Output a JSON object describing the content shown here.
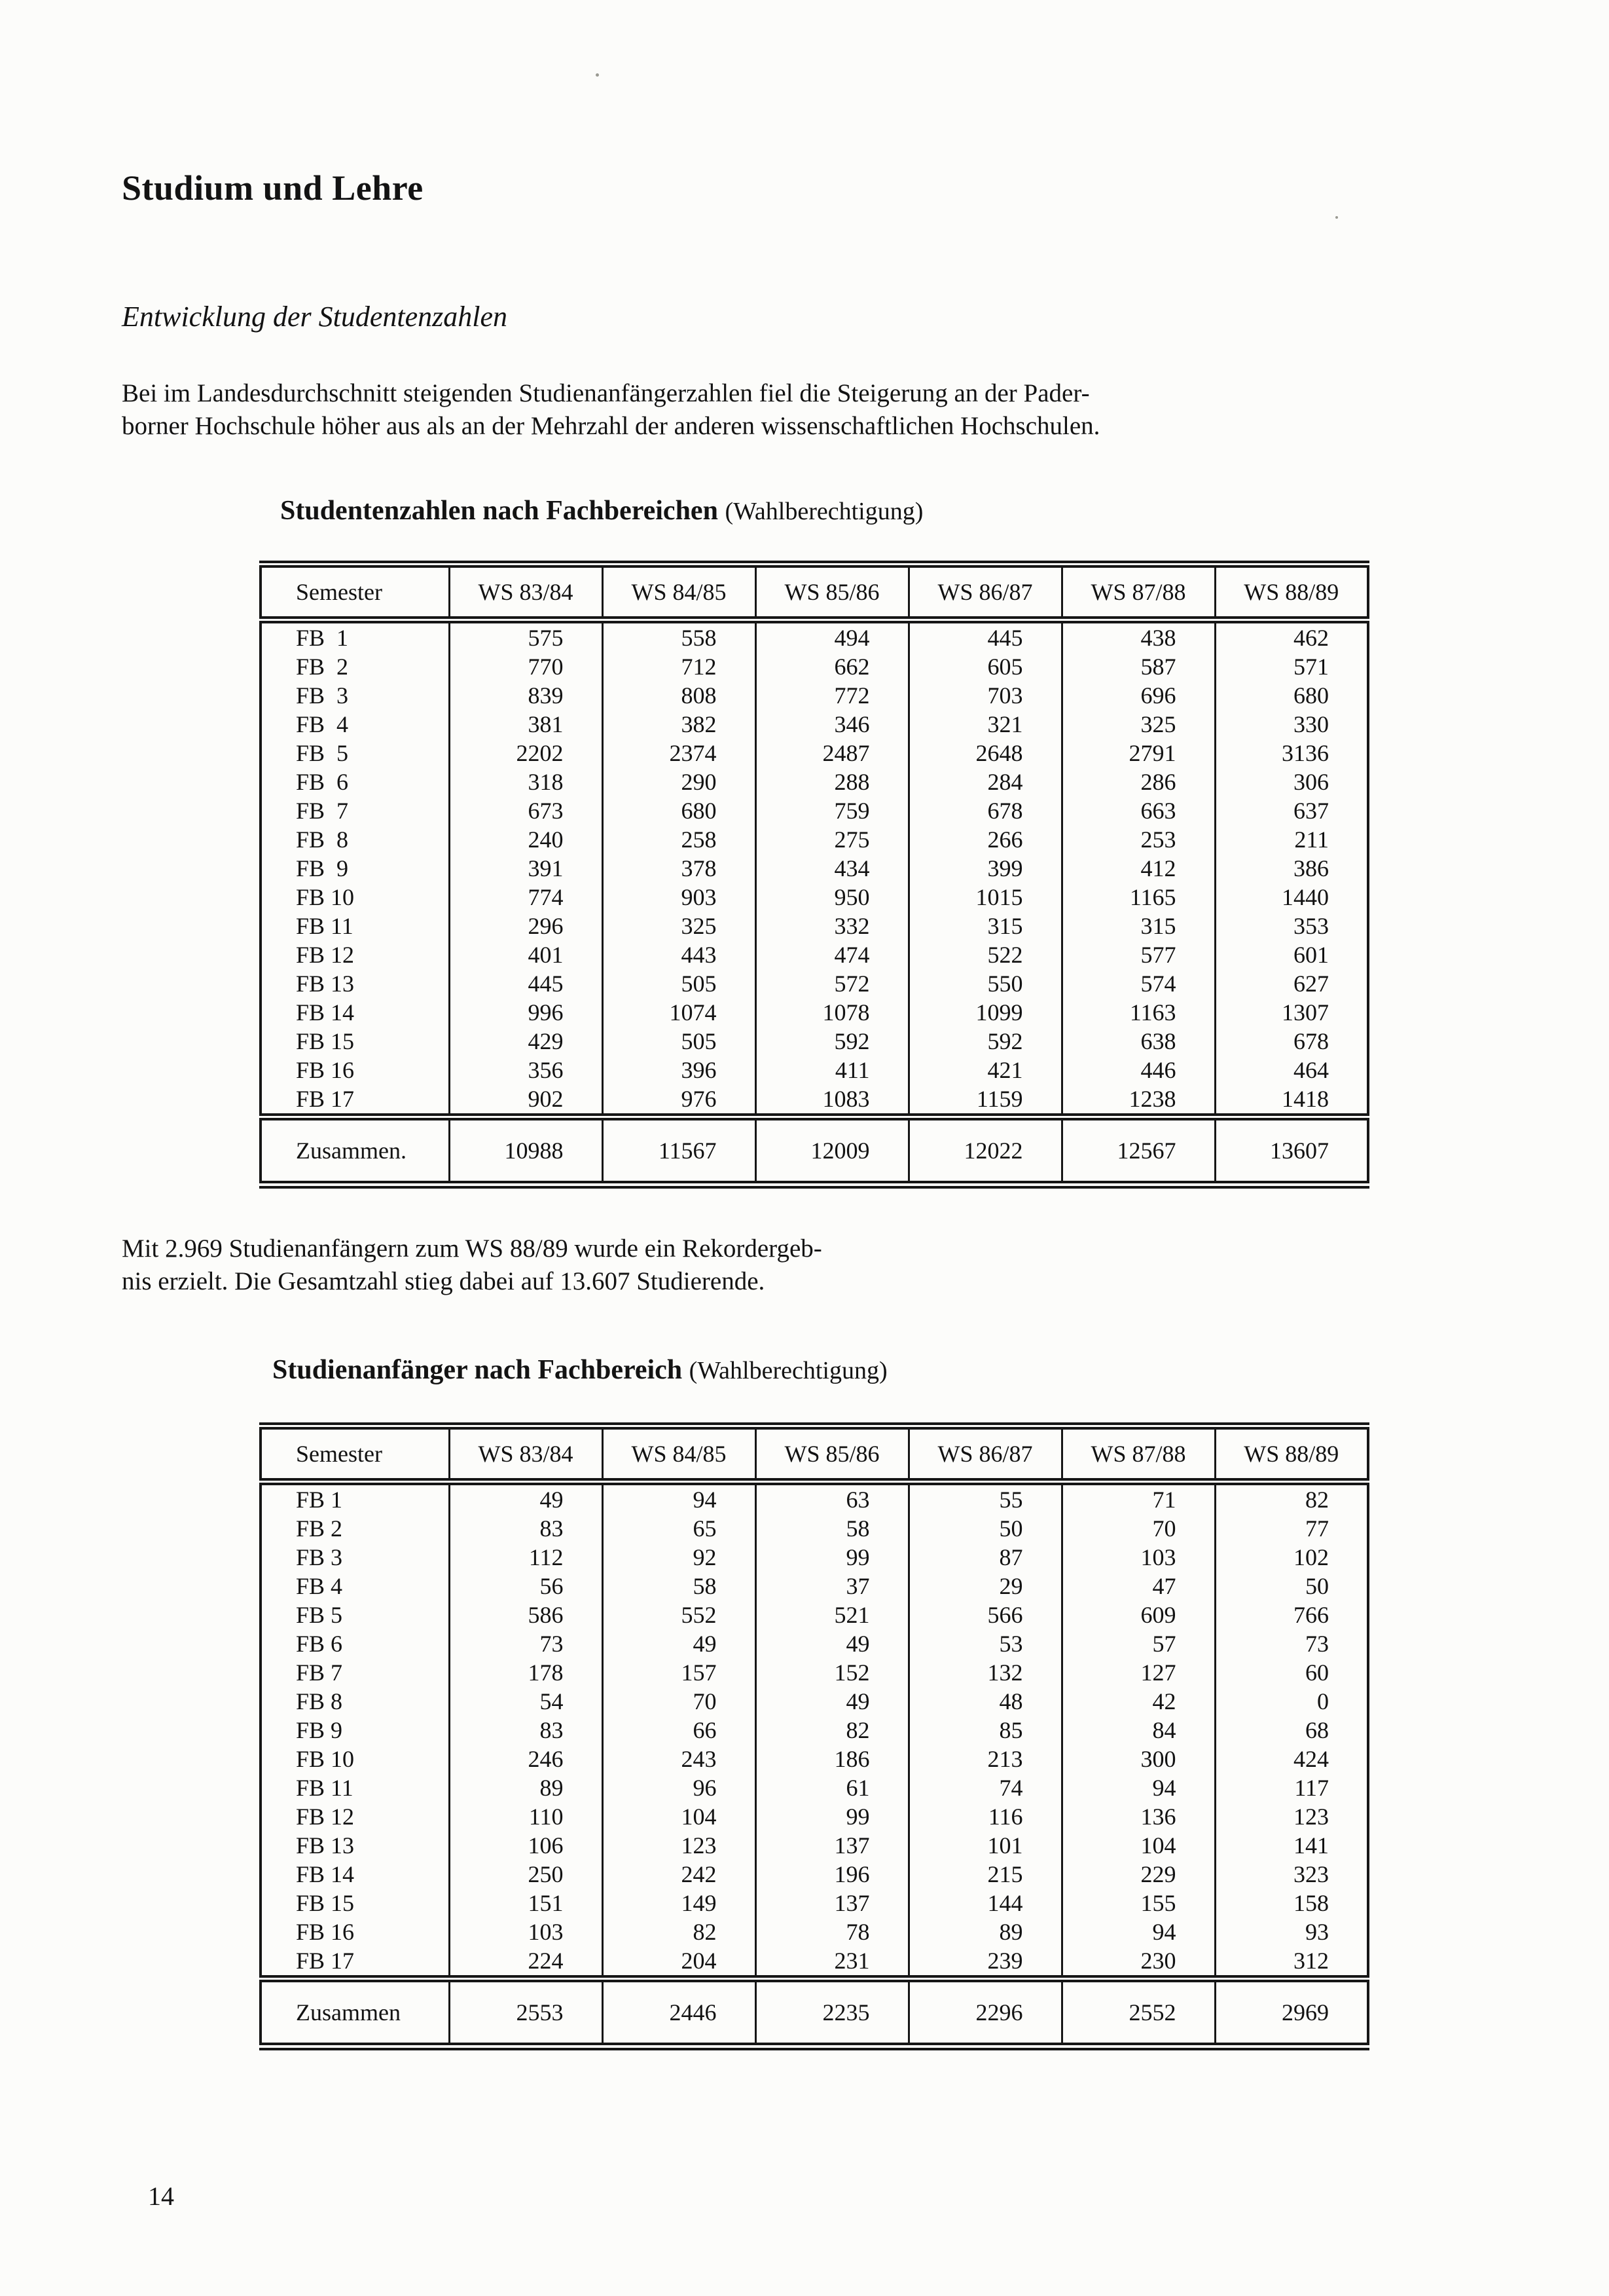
{
  "doc": {
    "title": "Studium und Lehre",
    "subtitle": "Entwicklung der Studentenzahlen",
    "intro_lines": [
      "Bei im Landesdurchschnitt steigenden Studienanfängerzahlen fiel die Steigerung an der Pader-",
      "borner Hochschule höher aus als an der Mehrzahl der anderen wissenschaftlichen Hochschulen."
    ],
    "note_lines": [
      "Mit 2.969 Studienanfängern zum WS 88/89 wurde ein Rekordergeb-",
      "nis erzielt. Die Gesamtzahl stieg dabei auf 13.607 Studierende."
    ],
    "page_number": "14"
  },
  "tables": [
    {
      "caption_bold": "Studentenzahlen nach Fachbereichen",
      "caption_suffix": "(Wahlberechtigung)",
      "columns": [
        "Semester",
        "WS 83/84",
        "WS 84/85",
        "WS 85/86",
        "WS 86/87",
        "WS 87/88",
        "WS 88/89"
      ],
      "rows": [
        {
          "label": "FB  1",
          "values": [
            575,
            558,
            494,
            445,
            438,
            462
          ]
        },
        {
          "label": "FB  2",
          "values": [
            770,
            712,
            662,
            605,
            587,
            571
          ]
        },
        {
          "label": "FB  3",
          "values": [
            839,
            808,
            772,
            703,
            696,
            680
          ]
        },
        {
          "label": "FB  4",
          "values": [
            381,
            382,
            346,
            321,
            325,
            330
          ]
        },
        {
          "label": "FB  5",
          "values": [
            2202,
            2374,
            2487,
            2648,
            2791,
            3136
          ]
        },
        {
          "label": "FB  6",
          "values": [
            318,
            290,
            288,
            284,
            286,
            306
          ]
        },
        {
          "label": "FB  7",
          "values": [
            673,
            680,
            759,
            678,
            663,
            637
          ]
        },
        {
          "label": "FB  8",
          "values": [
            240,
            258,
            275,
            266,
            253,
            211
          ]
        },
        {
          "label": "FB  9",
          "values": [
            391,
            378,
            434,
            399,
            412,
            386
          ]
        },
        {
          "label": "FB 10",
          "values": [
            774,
            903,
            950,
            1015,
            1165,
            1440
          ]
        },
        {
          "label": "FB 11",
          "values": [
            296,
            325,
            332,
            315,
            315,
            353
          ]
        },
        {
          "label": "FB 12",
          "values": [
            401,
            443,
            474,
            522,
            577,
            601
          ]
        },
        {
          "label": "FB 13",
          "values": [
            445,
            505,
            572,
            550,
            574,
            627
          ]
        },
        {
          "label": "FB 14",
          "values": [
            996,
            1074,
            1078,
            1099,
            1163,
            1307
          ]
        },
        {
          "label": "FB 15",
          "values": [
            429,
            505,
            592,
            592,
            638,
            678
          ]
        },
        {
          "label": "FB 16",
          "values": [
            356,
            396,
            411,
            421,
            446,
            464
          ]
        },
        {
          "label": "FB 17",
          "values": [
            902,
            976,
            1083,
            1159,
            1238,
            1418
          ]
        }
      ],
      "total": {
        "label": "Zusammen.",
        "values": [
          10988,
          11567,
          12009,
          12022,
          12567,
          13607
        ]
      }
    },
    {
      "caption_bold": "Studienanfänger nach Fachbereich",
      "caption_suffix": "(Wahlberechtigung)",
      "columns": [
        "Semester",
        "WS 83/84",
        "WS 84/85",
        "WS 85/86",
        "WS 86/87",
        "WS 87/88",
        "WS 88/89"
      ],
      "rows": [
        {
          "label": "FB 1",
          "values": [
            49,
            94,
            63,
            55,
            71,
            82
          ]
        },
        {
          "label": "FB 2",
          "values": [
            83,
            65,
            58,
            50,
            70,
            77
          ]
        },
        {
          "label": "FB 3",
          "values": [
            112,
            92,
            99,
            87,
            103,
            102
          ]
        },
        {
          "label": "FB 4",
          "values": [
            56,
            58,
            37,
            29,
            47,
            50
          ]
        },
        {
          "label": "FB 5",
          "values": [
            586,
            552,
            521,
            566,
            609,
            766
          ]
        },
        {
          "label": "FB 6",
          "values": [
            73,
            49,
            49,
            53,
            57,
            73
          ]
        },
        {
          "label": "FB 7",
          "values": [
            178,
            157,
            152,
            132,
            127,
            60
          ]
        },
        {
          "label": "FB 8",
          "values": [
            54,
            70,
            49,
            48,
            42,
            0
          ]
        },
        {
          "label": "FB 9",
          "values": [
            83,
            66,
            82,
            85,
            84,
            68
          ]
        },
        {
          "label": "FB 10",
          "values": [
            246,
            243,
            186,
            213,
            300,
            424
          ]
        },
        {
          "label": "FB 11",
          "values": [
            89,
            96,
            61,
            74,
            94,
            117
          ]
        },
        {
          "label": "FB 12",
          "values": [
            110,
            104,
            99,
            116,
            136,
            123
          ]
        },
        {
          "label": "FB 13",
          "values": [
            106,
            123,
            137,
            101,
            104,
            141
          ]
        },
        {
          "label": "FB 14",
          "values": [
            250,
            242,
            196,
            215,
            229,
            323
          ]
        },
        {
          "label": "FB 15",
          "values": [
            151,
            149,
            137,
            144,
            155,
            158
          ]
        },
        {
          "label": "FB 16",
          "values": [
            103,
            82,
            78,
            89,
            94,
            93
          ]
        },
        {
          "label": "FB 17",
          "values": [
            224,
            204,
            231,
            239,
            230,
            312
          ]
        }
      ],
      "total": {
        "label": "Zusammen",
        "values": [
          2553,
          2446,
          2235,
          2296,
          2552,
          2969
        ]
      }
    }
  ]
}
